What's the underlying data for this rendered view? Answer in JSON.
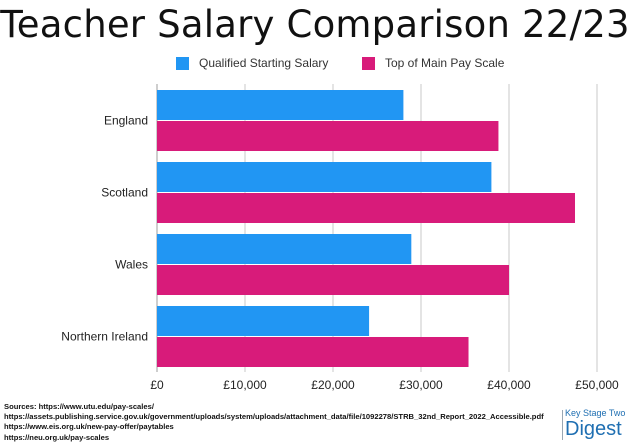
{
  "title": "Teacher Salary Comparison 22/23",
  "legend": [
    {
      "label": "Qualified Starting Salary",
      "color": "#2196f3"
    },
    {
      "label": "Top of Main Pay Scale",
      "color": "#d81b7a"
    }
  ],
  "chart_data": {
    "type": "bar",
    "orientation": "horizontal",
    "categories": [
      "England",
      "Scotland",
      "Wales",
      "Northern Ireland"
    ],
    "series": [
      {
        "name": "Qualified Starting Salary",
        "color": "#2196f3",
        "values": [
          28000,
          38000,
          28900,
          24100
        ]
      },
      {
        "name": "Top of Main Pay Scale",
        "color": "#d81b7a",
        "values": [
          38800,
          47500,
          40000,
          35400
        ]
      }
    ],
    "xlim": [
      0,
      50000
    ],
    "xticks": [
      0,
      10000,
      20000,
      30000,
      40000,
      50000
    ],
    "xtick_labels": [
      "£0",
      "£10,000",
      "£20,000",
      "£30,000",
      "£40,000",
      "£50,000"
    ],
    "grid": true,
    "legend_position": "top"
  },
  "sources": [
    "Sources: https://www.utu.edu/pay-scales/",
    "https://assets.publishing.service.gov.uk/government/uploads/system/uploads/attachment_data/file/1092278/STRB_32nd_Report_2022_Accessible.pdf",
    "https://www.eis.org.uk/new-pay-offer/paytables",
    "https://neu.org.uk/pay-scales"
  ],
  "logo": {
    "line1": "Key Stage Two",
    "line2": "Digest"
  }
}
